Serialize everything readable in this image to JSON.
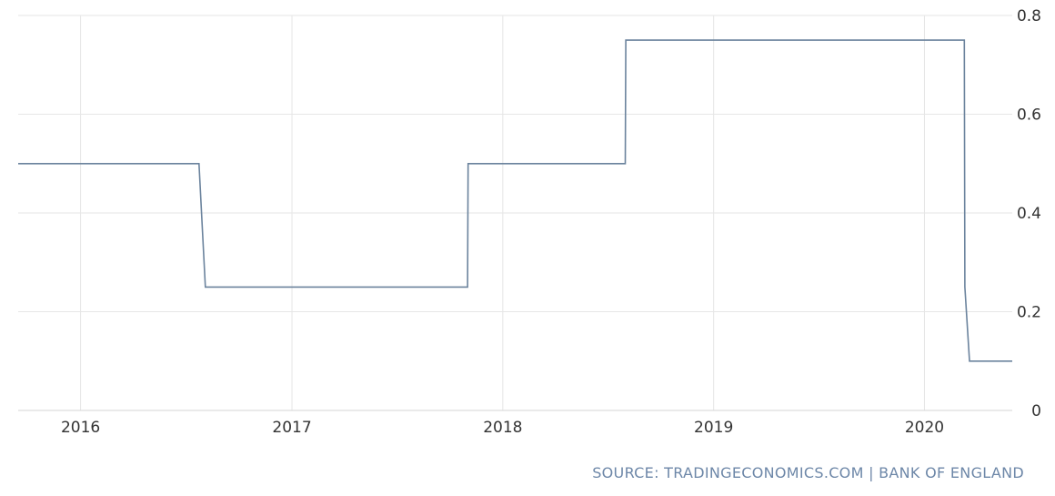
{
  "chart_data": {
    "type": "line",
    "step": true,
    "x": [
      "2015-09-15",
      "2016-07-24",
      "2016-08-04",
      "2017-11-01",
      "2017-11-02",
      "2018-08-01",
      "2018-08-02",
      "2020-03-10",
      "2020-03-11",
      "2020-03-19",
      "2020-06-01"
    ],
    "series": [
      {
        "values": [
          0.5,
          0.5,
          0.25,
          0.25,
          0.5,
          0.5,
          0.75,
          0.75,
          0.25,
          0.1,
          0.1
        ]
      }
    ],
    "x_ticks": [
      {
        "label": "2016",
        "date": "2016-01-01"
      },
      {
        "label": "2017",
        "date": "2017-01-01"
      },
      {
        "label": "2018",
        "date": "2018-01-01"
      },
      {
        "label": "2019",
        "date": "2019-01-01"
      },
      {
        "label": "2020",
        "date": "2020-01-01"
      }
    ],
    "y_ticks": [
      {
        "label": "0",
        "value": 0
      },
      {
        "label": "0.2",
        "value": 0.2
      },
      {
        "label": "0.4",
        "value": 0.4
      },
      {
        "label": "0.6",
        "value": 0.6
      },
      {
        "label": "0.8",
        "value": 0.8
      }
    ],
    "ylim": [
      0,
      0.8
    ],
    "xlim": [
      "2015-09-15",
      "2020-06-01"
    ],
    "y_axis_side": "right",
    "grid": true,
    "title": "",
    "xlabel": "",
    "ylabel": "",
    "line_color": "#6b839d"
  },
  "footer": {
    "source": "SOURCE: TRADINGECONOMICS.COM | BANK OF ENGLAND"
  },
  "colors": {
    "source_text": "#6d87a8",
    "grid": "#e6e6e6"
  }
}
